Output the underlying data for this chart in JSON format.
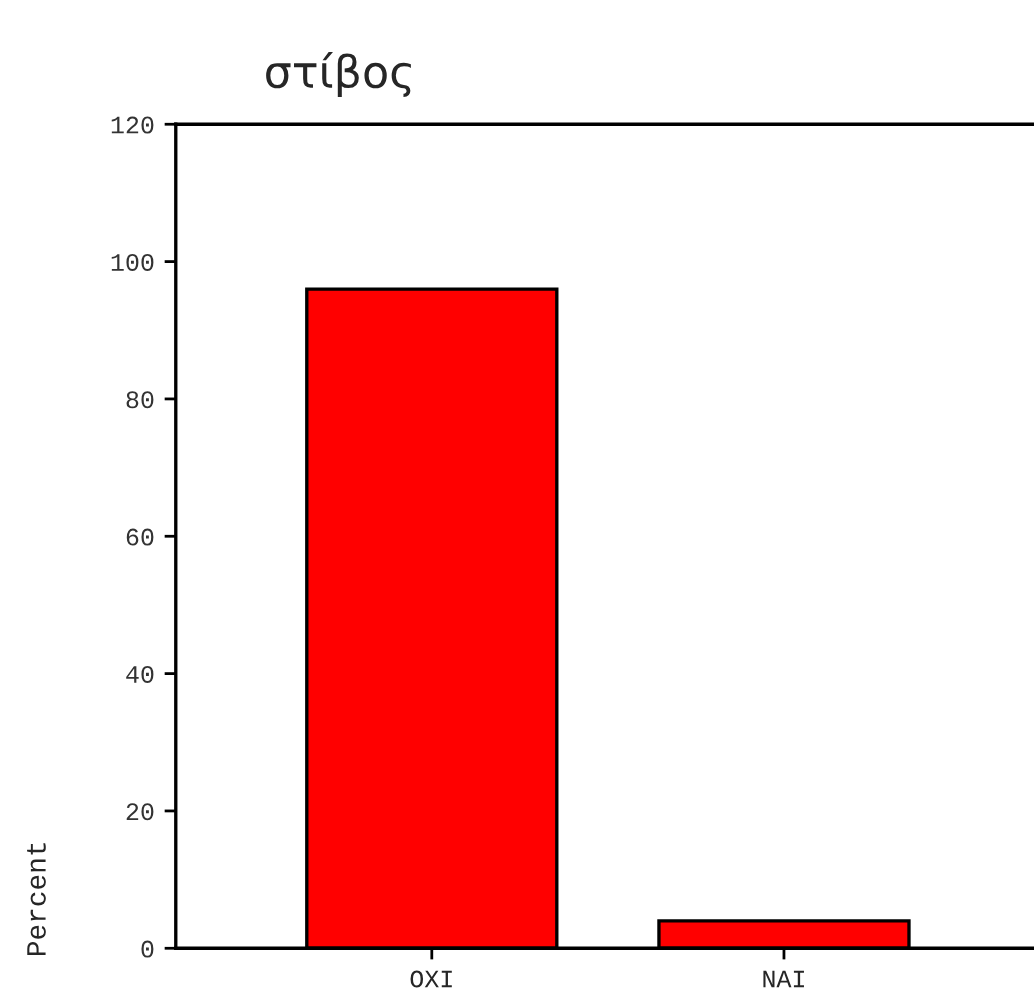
{
  "chart_data": {
    "type": "bar",
    "title": "στίβος",
    "ylabel": "Percent",
    "categories": [
      "ΟΧΙ",
      "ΝΑΙ"
    ],
    "series": [
      {
        "color": "#ff0000",
        "values": [
          96,
          4
        ]
      }
    ],
    "ylim": [
      0,
      120
    ],
    "yticks": [
      0,
      20,
      40,
      60,
      80,
      100,
      120
    ],
    "grid": false,
    "legend": false
  }
}
